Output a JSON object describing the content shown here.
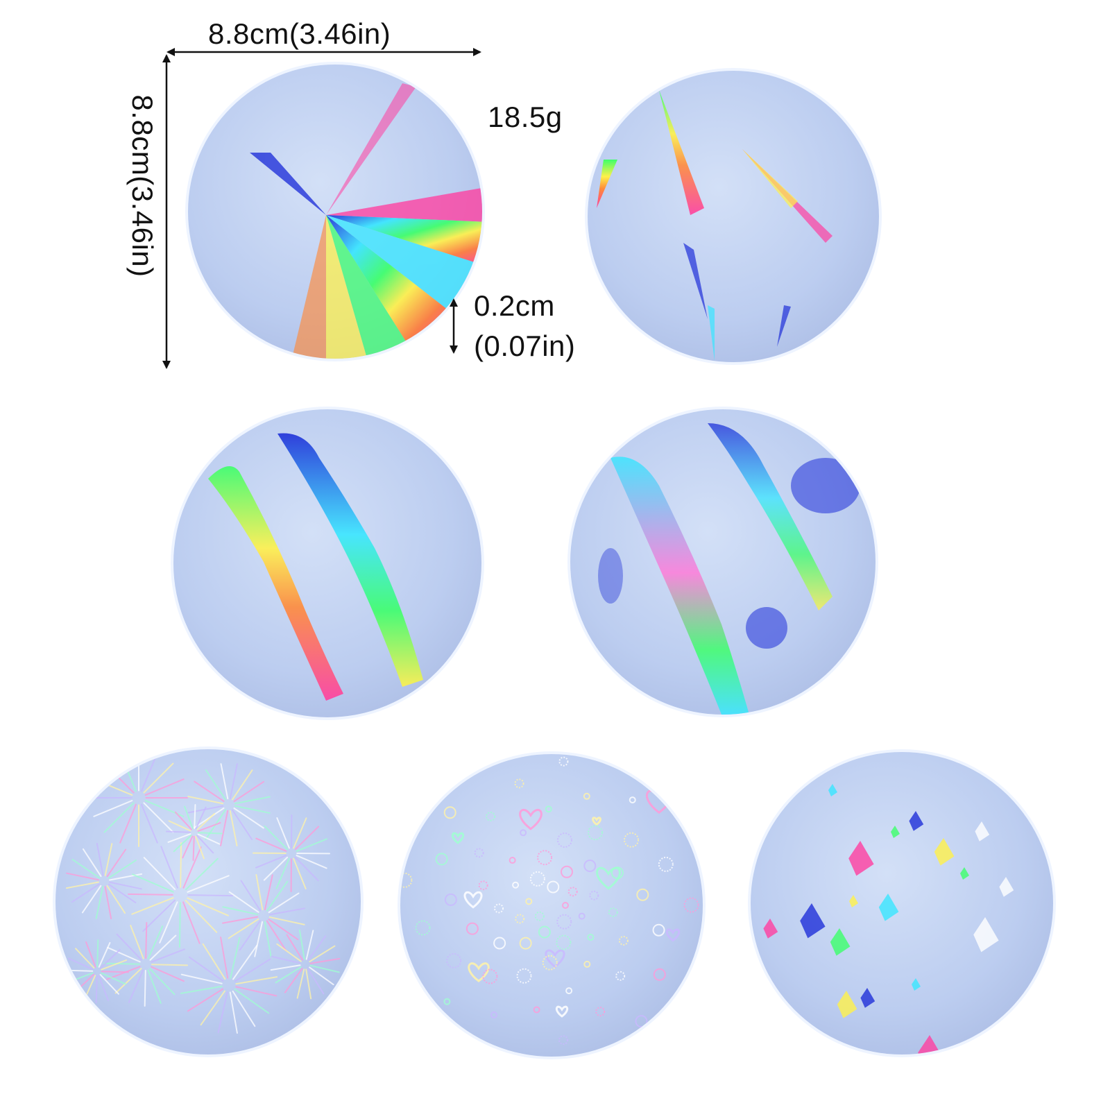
{
  "dimensions": {
    "width_label": "8.8cm(3.46in)",
    "height_label": "8.8cm(3.46in)",
    "weight_label": "18.5g",
    "thickness_label_line1": "0.2cm",
    "thickness_label_line2": "(0.07in)"
  },
  "coasters": [
    {
      "pattern": "fan-rays",
      "base_color": "#c9d8f3"
    },
    {
      "pattern": "streaks",
      "base_color": "#c9d8f3"
    },
    {
      "pattern": "diagonal-bands",
      "base_color": "#c9d8f3"
    },
    {
      "pattern": "wide-bands",
      "base_color": "#c9d8f3"
    },
    {
      "pattern": "fireworks",
      "base_color": "#c9d8f3"
    },
    {
      "pattern": "hearts-and-dots",
      "base_color": "#c9d8f3"
    },
    {
      "pattern": "shards",
      "base_color": "#c9d8f3"
    }
  ],
  "colors": {
    "arrow": "#111111",
    "rim": "#eef4ff",
    "holo_pink": "#ff3fa0",
    "holo_green": "#3cff6a",
    "holo_yellow": "#fff14a",
    "holo_blue": "#1f2fd8",
    "holo_cyan": "#39e6ff"
  }
}
